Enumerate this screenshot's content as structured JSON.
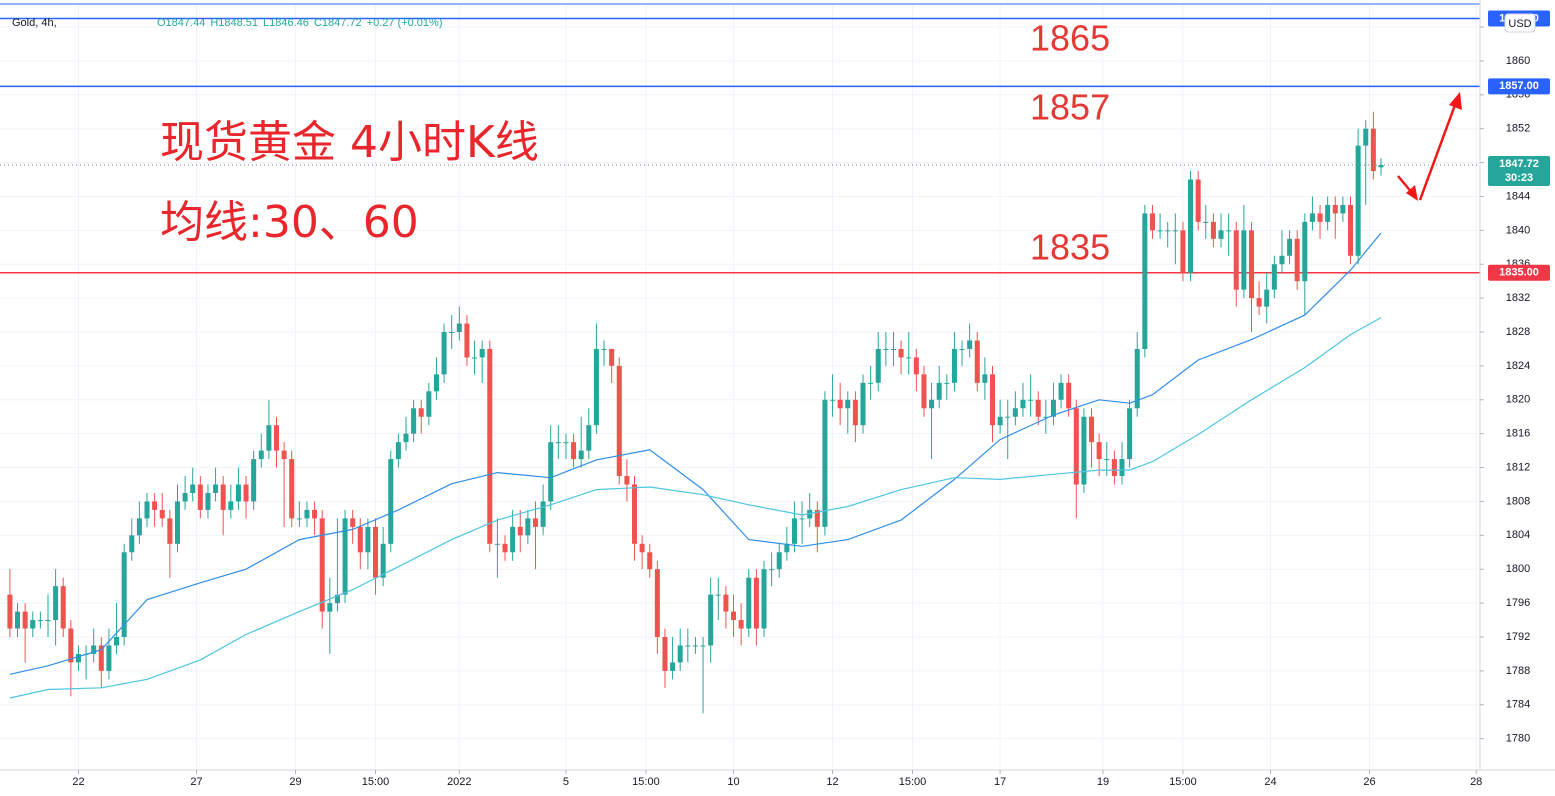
{
  "chart_data": {
    "type": "candlestick",
    "symbol": "Gold, 4h,",
    "ohlc_header": [
      "O1847.44",
      "H1848.51",
      "L1846.46",
      "C1847.72",
      "+0.27 (+0.01%)"
    ],
    "title": "现货黄金 4小时K线",
    "subtitle": "均线:30、60",
    "currency": "USD",
    "up_color": "#26a69a",
    "down_color": "#ef5350",
    "grid": true,
    "xlim": [
      -1.3,
      193
    ],
    "ylim": [
      1776.3,
      1866.6
    ],
    "yticks": [
      1780,
      1784,
      1788,
      1792,
      1796,
      1800,
      1804,
      1808,
      1812,
      1816,
      1820,
      1824,
      1828,
      1832,
      1836,
      1840,
      1844,
      1848,
      1852,
      1856,
      1860,
      1864
    ],
    "xticks": [
      {
        "value": 9,
        "label": "22"
      },
      {
        "value": 24.5,
        "label": "27"
      },
      {
        "value": 37.5,
        "label": "29"
      },
      {
        "value": 48,
        "label": "15:00"
      },
      {
        "value": 59,
        "label": "2022"
      },
      {
        "value": 73,
        "label": "5"
      },
      {
        "value": 83.5,
        "label": "15:00"
      },
      {
        "value": 95,
        "label": "10"
      },
      {
        "value": 108,
        "label": "12"
      },
      {
        "value": 118.5,
        "label": "15:00"
      },
      {
        "value": 130,
        "label": "17"
      },
      {
        "value": 143.5,
        "label": "19"
      },
      {
        "value": 154,
        "label": "15:00"
      },
      {
        "value": 165.5,
        "label": "24"
      },
      {
        "value": 178.5,
        "label": "26"
      },
      {
        "value": 192.5,
        "label": "28"
      }
    ],
    "open": [
      1797,
      1793,
      1795,
      1793,
      1794,
      1794,
      1794,
      1798,
      1793,
      1789,
      1790,
      1790,
      1791,
      1788,
      1791,
      1792,
      1802,
      1804,
      1806,
      1808,
      1807,
      1806,
      1803,
      1808,
      1809,
      1810,
      1807,
      1809,
      1810,
      1807,
      1808,
      1810,
      1808,
      1813,
      1814,
      1817,
      1814,
      1813,
      1806,
      1806,
      1807,
      1806,
      1795,
      1796,
      1797,
      1806,
      1805,
      1802,
      1805,
      1799,
      1803,
      1813,
      1815,
      1816,
      1819,
      1818,
      1821,
      1823,
      1828,
      1828,
      1829,
      1825,
      1825,
      1826,
      1803,
      1803,
      1802,
      1805,
      1804,
      1806,
      1805,
      1808,
      1815,
      1815,
      1815,
      1813,
      1814,
      1817,
      1826,
      1826,
      1824,
      1811,
      1810,
      1803,
      1802,
      1800,
      1792,
      1788,
      1789,
      1791,
      1791,
      1791,
      1791,
      1797,
      1797,
      1795,
      1794,
      1793,
      1799,
      1793,
      1800,
      1800,
      1802,
      1803,
      1806,
      1806,
      1807,
      1805,
      1820,
      1820,
      1819,
      1820,
      1817,
      1822,
      1822,
      1826,
      1826,
      1826,
      1825,
      1825,
      1823,
      1819,
      1820,
      1822,
      1822,
      1826,
      1826,
      1827,
      1822,
      1823,
      1817,
      1818,
      1818,
      1819,
      1820,
      1820,
      1818,
      1818,
      1820,
      1822,
      1819,
      1810,
      1818,
      1815,
      1813,
      1813,
      1811,
      1813,
      1819,
      1826,
      1842,
      1840,
      1840,
      1840,
      1840,
      1835,
      1846,
      1841,
      1841,
      1839,
      1840,
      1840,
      1833,
      1840,
      1832,
      1831,
      1833,
      1836,
      1837,
      1839,
      1834,
      1841,
      1842,
      1841,
      1843,
      1842,
      1843,
      1837,
      1850,
      1852,
      1847.44
    ],
    "high": [
      1800,
      1796,
      1796,
      1795,
      1795,
      1797,
      1800,
      1799,
      1794,
      1791,
      1791,
      1793,
      1792,
      1793,
      1796,
      1803,
      1806,
      1808,
      1809,
      1809,
      1809,
      1807,
      1810,
      1811,
      1812,
      1811,
      1810,
      1812,
      1811,
      1810,
      1812,
      1811,
      1814,
      1816,
      1820,
      1818,
      1815,
      1814,
      1808,
      1808,
      1808,
      1807,
      1799,
      1806,
      1807,
      1807,
      1806,
      1806,
      1806,
      1805,
      1814,
      1816,
      1818,
      1820,
      1820,
      1822,
      1825,
      1829,
      1830,
      1831,
      1830,
      1827,
      1827,
      1827,
      1806,
      1804,
      1807,
      1807,
      1807,
      1808,
      1810,
      1817,
      1817,
      1816,
      1816,
      1818,
      1819,
      1829,
      1827,
      1826,
      1825,
      1813,
      1811,
      1804,
      1803,
      1801,
      1793,
      1792,
      1793,
      1793,
      1792,
      1792,
      1799,
      1799,
      1798,
      1797,
      1796,
      1800,
      1800,
      1801,
      1802,
      1803,
      1805,
      1808,
      1808,
      1809,
      1808,
      1821,
      1823,
      1822,
      1821,
      1821,
      1823,
      1824,
      1828,
      1828,
      1828,
      1827,
      1828,
      1826,
      1824,
      1822,
      1824,
      1823,
      1828,
      1827,
      1829,
      1828,
      1825,
      1824,
      1820,
      1820,
      1821,
      1822,
      1823,
      1821,
      1820,
      1822,
      1823,
      1823,
      1820,
      1819,
      1819,
      1816,
      1815,
      1814,
      1815,
      1820,
      1828,
      1843,
      1843,
      1842,
      1841,
      1842,
      1841,
      1847,
      1847,
      1843,
      1842,
      1842,
      1842,
      1841,
      1843,
      1841,
      1834,
      1835,
      1837,
      1840,
      1840,
      1840,
      1842,
      1844,
      1843,
      1844,
      1844,
      1844,
      1844,
      1852,
      1853,
      1854,
      1848.51
    ],
    "low": [
      1792,
      1792,
      1789,
      1792,
      1793,
      1792,
      1791,
      1792,
      1785,
      1788,
      1787,
      1789,
      1786,
      1787,
      1790,
      1791,
      1801,
      1803,
      1805,
      1805,
      1805,
      1799,
      1802,
      1807,
      1808,
      1806,
      1806,
      1808,
      1804,
      1806,
      1807,
      1806,
      1807,
      1812,
      1813,
      1812,
      1805,
      1805,
      1805,
      1805,
      1804,
      1793,
      1790,
      1795,
      1796,
      1803,
      1800,
      1800,
      1797,
      1798,
      1802,
      1812,
      1814,
      1815,
      1816,
      1817,
      1820,
      1822,
      1826,
      1827,
      1824,
      1823,
      1822,
      1802,
      1799,
      1801,
      1801,
      1802,
      1803,
      1800,
      1804,
      1807,
      1813,
      1813,
      1812,
      1812,
      1813,
      1816,
      1824,
      1822,
      1810,
      1808,
      1801,
      1800,
      1799,
      1790,
      1786,
      1787,
      1788,
      1789,
      1790,
      1783,
      1789,
      1794,
      1793,
      1792,
      1791,
      1792,
      1791,
      1792,
      1798,
      1799,
      1801,
      1802,
      1803,
      1805,
      1802,
      1804,
      1818,
      1817,
      1816,
      1815,
      1816,
      1820,
      1821,
      1824,
      1824,
      1823,
      1823,
      1821,
      1818,
      1813,
      1819,
      1820,
      1821,
      1824,
      1825,
      1821,
      1820,
      1815,
      1816,
      1813,
      1817,
      1818,
      1818,
      1817,
      1816,
      1817,
      1819,
      1818,
      1806,
      1809,
      1812,
      1811,
      1811,
      1810,
      1810,
      1812,
      1818,
      1825,
      1839,
      1839,
      1838,
      1836,
      1834,
      1834,
      1840,
      1839,
      1838,
      1838,
      1837,
      1831,
      1832,
      1828,
      1830,
      1829,
      1832,
      1835,
      1836,
      1833,
      1830,
      1840,
      1839,
      1840,
      1839,
      1841,
      1836,
      1836,
      1843,
      1846,
      1846.46
    ],
    "close": [
      1793,
      1795,
      1793,
      1794,
      1794,
      1794,
      1798,
      1793,
      1789,
      1790,
      1790,
      1791,
      1788,
      1791,
      1792,
      1802,
      1804,
      1806,
      1808,
      1807,
      1806,
      1803,
      1808,
      1809,
      1810,
      1807,
      1809,
      1810,
      1807,
      1808,
      1810,
      1808,
      1813,
      1814,
      1817,
      1814,
      1813,
      1806,
      1806,
      1807,
      1806,
      1795,
      1796,
      1797,
      1806,
      1805,
      1802,
      1805,
      1799,
      1803,
      1813,
      1815,
      1816,
      1819,
      1818,
      1821,
      1823,
      1828,
      1828,
      1829,
      1825,
      1825,
      1826,
      1803,
      1803,
      1802,
      1805,
      1804,
      1806,
      1805,
      1808,
      1815,
      1815,
      1815,
      1813,
      1814,
      1817,
      1826,
      1826,
      1824,
      1811,
      1810,
      1803,
      1802,
      1800,
      1792,
      1788,
      1789,
      1791,
      1791,
      1791,
      1791,
      1797,
      1797,
      1795,
      1794,
      1793,
      1799,
      1793,
      1800,
      1800,
      1802,
      1803,
      1806,
      1806,
      1807,
      1805,
      1820,
      1820,
      1819,
      1820,
      1817,
      1822,
      1822,
      1826,
      1826,
      1826,
      1825,
      1825,
      1823,
      1819,
      1820,
      1822,
      1822,
      1826,
      1826,
      1827,
      1822,
      1823,
      1817,
      1818,
      1818,
      1819,
      1820,
      1820,
      1818,
      1818,
      1820,
      1822,
      1819,
      1810,
      1818,
      1815,
      1813,
      1813,
      1811,
      1813,
      1819,
      1826,
      1842,
      1840,
      1840,
      1840,
      1840,
      1835,
      1846,
      1841,
      1841,
      1839,
      1840,
      1840,
      1833,
      1840,
      1832,
      1831,
      1833,
      1836,
      1837,
      1839,
      1834,
      1841,
      1842,
      1841,
      1843,
      1842,
      1843,
      1837,
      1850,
      1852,
      1847,
      1847.72
    ],
    "moving_averages": [
      {
        "color": "#2f8ee8",
        "x": [
          0,
          5,
          12,
          18,
          25,
          31,
          38,
          45,
          51,
          58,
          64,
          71,
          77,
          84,
          91,
          97,
          104,
          110,
          117,
          124,
          130,
          137,
          143,
          147,
          150,
          156,
          163,
          170,
          176,
          180
        ],
        "values": [
          1787.6,
          1788.6,
          1790.5,
          1796.4,
          1798.4,
          1800,
          1803.5,
          1804.7,
          1807,
          1810.1,
          1811.4,
          1810.8,
          1812.9,
          1814.1,
          1809.4,
          1803.5,
          1802.7,
          1803.5,
          1805.8,
          1810.6,
          1815.3,
          1818.2,
          1820,
          1819.6,
          1820.6,
          1824.7,
          1827.1,
          1830,
          1835.3,
          1839.7
        ]
      },
      {
        "color": "#4cc6e0",
        "x": [
          0,
          5,
          12,
          18,
          25,
          31,
          38,
          45,
          51,
          58,
          64,
          71,
          77,
          84,
          91,
          97,
          104,
          110,
          117,
          124,
          130,
          137,
          143,
          147,
          150,
          156,
          163,
          170,
          176,
          180
        ],
        "values": [
          1784.8,
          1785.8,
          1786,
          1787,
          1789.3,
          1792.3,
          1795,
          1797.6,
          1800.3,
          1803.5,
          1805.8,
          1807.6,
          1809.4,
          1809.7,
          1808.8,
          1807.6,
          1806.4,
          1807.4,
          1809.4,
          1810.8,
          1810.6,
          1811.2,
          1811.7,
          1811.7,
          1812.7,
          1815.9,
          1820,
          1823.8,
          1827.7,
          1829.7
        ]
      }
    ],
    "levels": [
      {
        "value": 1865,
        "label": "1865.00",
        "color": "#2962ff"
      },
      {
        "value": 1857,
        "label": "1857.00",
        "color": "#2962ff"
      },
      {
        "value": 1835,
        "label": "1835.00",
        "color": "#f23645"
      }
    ],
    "last_price": {
      "value": 1847.72,
      "countdown": "30:23",
      "color": "#26a69a"
    }
  }
}
